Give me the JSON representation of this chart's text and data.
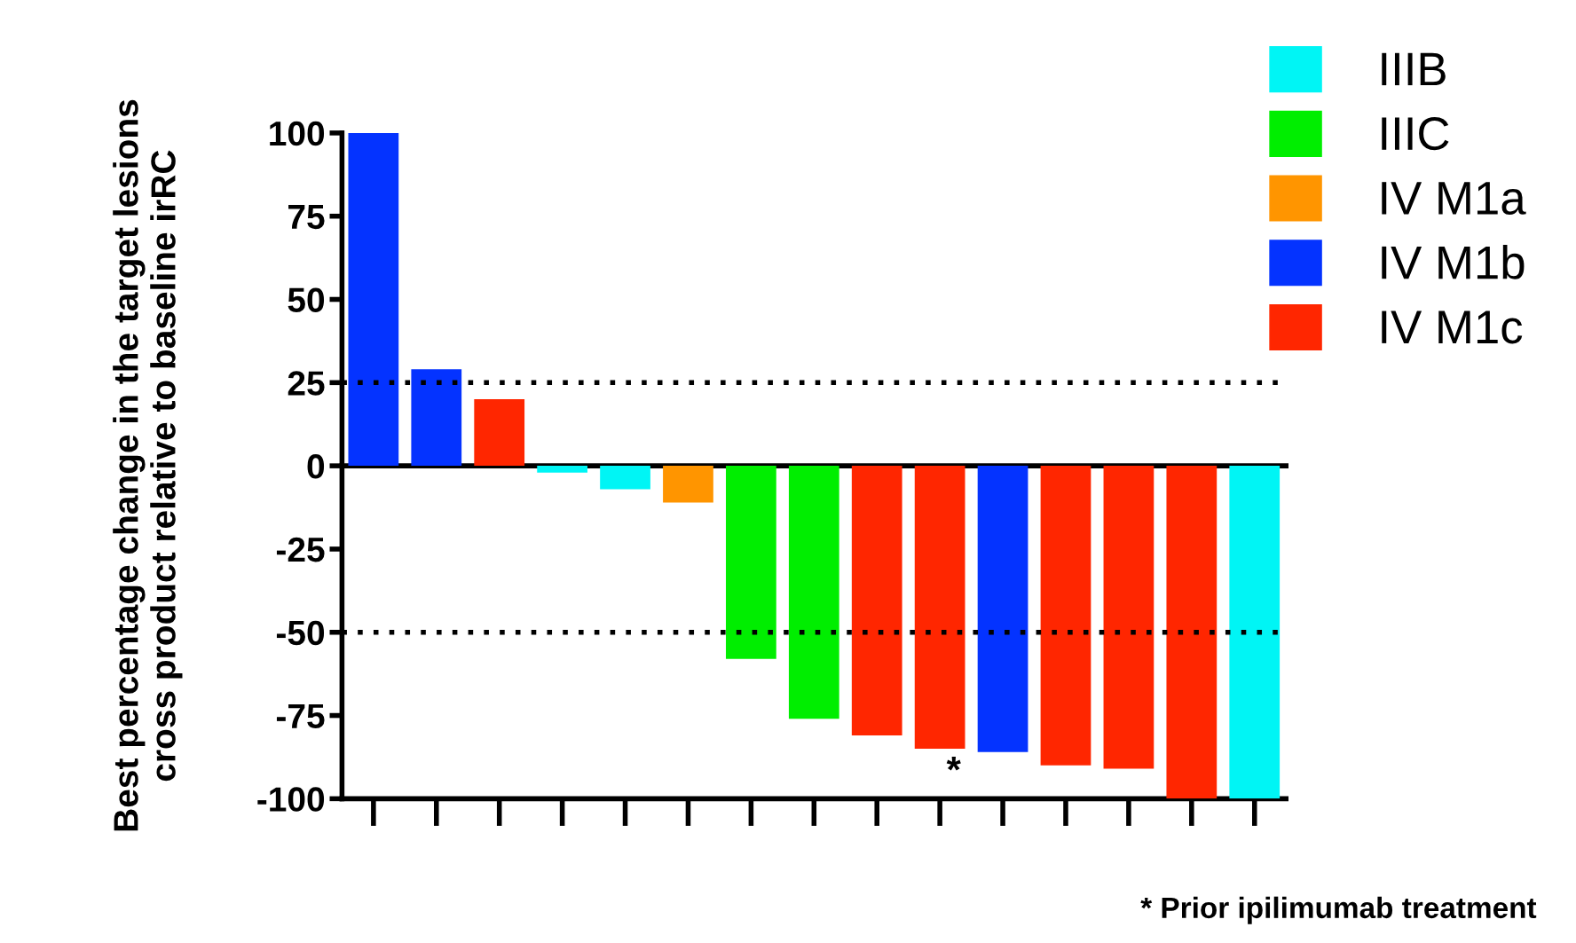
{
  "chart_data": {
    "type": "bar",
    "ylabel": "Best percentage change in the target lesions\ncross product relative to baseline irRC",
    "categories": [
      null,
      null,
      null,
      null,
      null,
      null,
      null,
      null,
      null,
      null,
      null,
      null,
      null,
      null,
      null
    ],
    "series": [
      {
        "name": "IIIB",
        "color": "#00f5f5",
        "values": [
          null,
          null,
          null,
          -2,
          -7,
          null,
          null,
          null,
          null,
          null,
          null,
          null,
          null,
          null,
          -100
        ]
      },
      {
        "name": "IIIC",
        "color": "#00ee00",
        "values": [
          null,
          null,
          null,
          null,
          null,
          null,
          -58,
          -76,
          null,
          null,
          null,
          null,
          null,
          null,
          null
        ]
      },
      {
        "name": "IV M1a",
        "color": "#ff9500",
        "values": [
          null,
          null,
          null,
          null,
          null,
          -11,
          null,
          null,
          null,
          null,
          null,
          null,
          null,
          null,
          null
        ]
      },
      {
        "name": "IV M1b",
        "color": "#0433ff",
        "values": [
          100,
          29,
          null,
          null,
          null,
          null,
          null,
          null,
          null,
          null,
          -86,
          null,
          null,
          null,
          null
        ]
      },
      {
        "name": "IV M1c",
        "color": "#ff2600",
        "values": [
          null,
          null,
          20,
          null,
          null,
          null,
          null,
          null,
          -81,
          -85,
          null,
          -90,
          -91,
          -100,
          null
        ]
      }
    ],
    "ylim": [
      -100,
      100
    ],
    "yticks": [
      -100,
      -75,
      -50,
      -25,
      0,
      25,
      50,
      75,
      100
    ],
    "ref_lines": [
      {
        "axis": "y",
        "value": 25,
        "line_style": "dotted"
      },
      {
        "axis": "y",
        "value": -50,
        "line_style": "dotted"
      }
    ],
    "annotations": [
      "*",
      "* Prior ipilimumab treatment"
    ],
    "legend": "top right",
    "grid": false
  }
}
